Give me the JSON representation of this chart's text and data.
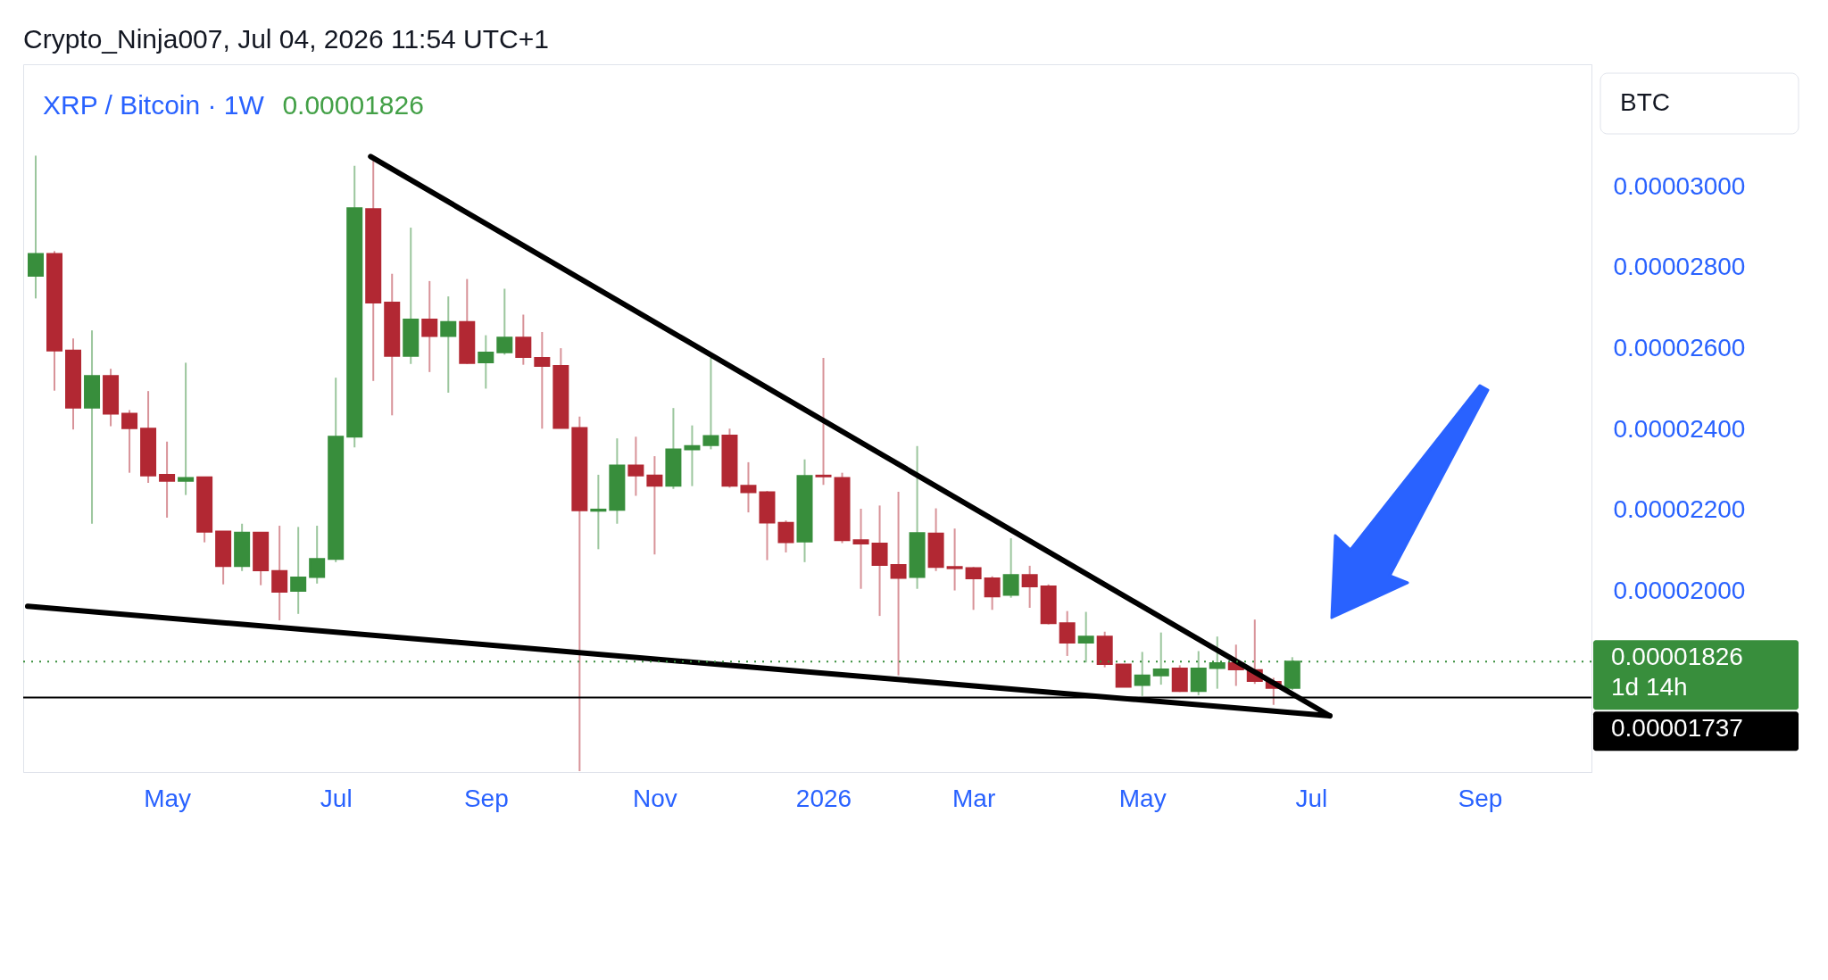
{
  "chart_data": {
    "type": "candlestick",
    "title": "Crypto_Ninja007, Jul 04, 2026 11:54 UTC+1",
    "subtitle": "XRP / Bitcoin · 1W",
    "ylabel": "BTC",
    "annotations": [
      "0.00001826"
    ],
    "x": [
      "2025-03-17",
      "2025-03-24",
      "2025-03-31",
      "2025-04-07",
      "2025-04-14",
      "2025-04-21",
      "2025-04-28",
      "2025-05-05",
      "2025-05-12",
      "2025-05-19",
      "2025-05-26",
      "2025-06-02",
      "2025-06-09",
      "2025-06-16",
      "2025-06-23",
      "2025-06-30",
      "2025-07-07",
      "2025-07-14",
      "2025-07-21",
      "2025-07-28",
      "2025-08-04",
      "2025-08-11",
      "2025-08-18",
      "2025-08-25",
      "2025-09-01",
      "2025-09-08",
      "2025-09-15",
      "2025-09-22",
      "2025-09-29",
      "2025-10-06",
      "2025-10-13",
      "2025-10-20",
      "2025-10-27",
      "2025-11-03",
      "2025-11-10",
      "2025-11-17",
      "2025-11-24",
      "2025-12-01",
      "2025-12-08",
      "2025-12-15",
      "2025-12-22",
      "2025-12-29",
      "2026-01-05",
      "2026-01-12",
      "2026-01-19",
      "2026-01-26",
      "2026-02-02",
      "2026-02-09",
      "2026-02-16",
      "2026-02-23",
      "2026-03-02",
      "2026-03-09",
      "2026-03-16",
      "2026-03-23",
      "2026-03-30",
      "2026-04-06",
      "2026-04-13",
      "2026-04-20",
      "2026-04-27",
      "2026-05-04",
      "2026-05-11",
      "2026-05-18",
      "2026-05-25",
      "2026-06-01",
      "2026-06-08",
      "2026-06-15",
      "2026-06-22",
      "2026-06-29"
    ],
    "ohlc": [
      [
        2.78e-05,
        3.077e-05,
        2.724e-05,
        2.834e-05
      ],
      [
        2.834e-05,
        2.841e-05,
        2.496e-05,
        2.595e-05
      ],
      [
        2.595e-05,
        2.625e-05,
        2.4e-05,
        2.454e-05
      ],
      [
        2.454e-05,
        2.645e-05,
        2.167e-05,
        2.532e-05
      ],
      [
        2.532e-05,
        2.55e-05,
        2.408e-05,
        2.439e-05
      ],
      [
        2.439e-05,
        2.448e-05,
        2.293e-05,
        2.403e-05
      ],
      [
        2.402e-05,
        2.495e-05,
        2.268e-05,
        2.286e-05
      ],
      [
        2.288e-05,
        2.37e-05,
        2.182e-05,
        2.273e-05
      ],
      [
        2.273e-05,
        2.565e-05,
        2.238e-05,
        2.28e-05
      ],
      [
        2.282e-05,
        2.282e-05,
        2.121e-05,
        2.147e-05
      ],
      [
        2.148e-05,
        2.148e-05,
        2.017e-05,
        2.062e-05
      ],
      [
        2.062e-05,
        2.167e-05,
        2.05e-05,
        2.145e-05
      ],
      [
        2.145e-05,
        2.145e-05,
        2.015e-05,
        2.052e-05
      ],
      [
        2.05e-05,
        2.162e-05,
        1.928e-05,
        1.999e-05
      ],
      [
        2.001e-05,
        2.159e-05,
        1.944e-05,
        2.034e-05
      ],
      [
        2.035e-05,
        2.162e-05,
        2.019e-05,
        2.08e-05
      ],
      [
        2.08e-05,
        2.528e-05,
        2.072e-05,
        2.382e-05
      ],
      [
        2.382e-05,
        3.052e-05,
        2.356e-05,
        2.947e-05
      ],
      [
        2.945e-05,
        3.064e-05,
        2.52e-05,
        2.714e-05
      ],
      [
        2.714e-05,
        2.785e-05,
        2.435e-05,
        2.582e-05
      ],
      [
        2.582e-05,
        2.899e-05,
        2.562e-05,
        2.672e-05
      ],
      [
        2.672e-05,
        2.767e-05,
        2.542e-05,
        2.631e-05
      ],
      [
        2.631e-05,
        2.729e-05,
        2.491e-05,
        2.666e-05
      ],
      [
        2.666e-05,
        2.772e-05,
        2.562e-05,
        2.564e-05
      ],
      [
        2.566e-05,
        2.633e-05,
        2.501e-05,
        2.59e-05
      ],
      [
        2.591e-05,
        2.748e-05,
        2.585e-05,
        2.627e-05
      ],
      [
        2.627e-05,
        2.684e-05,
        2.56e-05,
        2.579e-05
      ],
      [
        2.577e-05,
        2.641e-05,
        2.402e-05,
        2.557e-05
      ],
      [
        2.557e-05,
        2.601e-05,
        2.404e-05,
        2.404e-05
      ],
      [
        2.404e-05,
        2.432e-05,
        1.555e-05,
        2.2e-05
      ],
      [
        2.199e-05,
        2.288e-05,
        2.104e-05,
        2.202e-05
      ],
      [
        2.201e-05,
        2.378e-05,
        2.167e-05,
        2.311e-05
      ],
      [
        2.311e-05,
        2.382e-05,
        2.236e-05,
        2.286e-05
      ],
      [
        2.286e-05,
        2.334e-05,
        2.091e-05,
        2.261e-05
      ],
      [
        2.261e-05,
        2.453e-05,
        2.253e-05,
        2.351e-05
      ],
      [
        2.351e-05,
        2.41e-05,
        2.26e-05,
        2.359e-05
      ],
      [
        2.361e-05,
        2.577e-05,
        2.351e-05,
        2.384e-05
      ],
      [
        2.385e-05,
        2.402e-05,
        2.256e-05,
        2.261e-05
      ],
      [
        2.261e-05,
        2.319e-05,
        2.195e-05,
        2.245e-05
      ],
      [
        2.245e-05,
        2.248e-05,
        2.077e-05,
        2.17e-05
      ],
      [
        2.169e-05,
        2.175e-05,
        2.096e-05,
        2.121e-05
      ],
      [
        2.123e-05,
        2.326e-05,
        2.072e-05,
        2.285e-05
      ],
      [
        2.286e-05,
        2.577e-05,
        2.263e-05,
        2.284e-05
      ],
      [
        2.28e-05,
        2.293e-05,
        2.119e-05,
        2.126e-05
      ],
      [
        2.126e-05,
        2.204e-05,
        2.006e-05,
        2.118e-05
      ],
      [
        2.118e-05,
        2.212e-05,
        1.939e-05,
        2.065e-05
      ],
      [
        2.065e-05,
        2.246e-05,
        1.792e-05,
        2.033e-05
      ],
      [
        2.035e-05,
        2.359e-05,
        2.006e-05,
        2.144e-05
      ],
      [
        2.143e-05,
        2.205e-05,
        2.05e-05,
        2.06e-05
      ],
      [
        2.06e-05,
        2.155e-05,
        2.002e-05,
        2.057e-05
      ],
      [
        2.057e-05,
        2.06e-05,
        1.954e-05,
        2.032e-05
      ],
      [
        2.032e-05,
        2.037e-05,
        1.954e-05,
        1.987e-05
      ],
      [
        1.991e-05,
        2.131e-05,
        1.984e-05,
        2.04e-05
      ],
      [
        2.04e-05,
        2.063e-05,
        1.959e-05,
        2.012e-05
      ],
      [
        2.012e-05,
        2.017e-05,
        1.918e-05,
        1.921e-05
      ],
      [
        1.921e-05,
        1.951e-05,
        1.84e-05,
        1.873e-05
      ],
      [
        1.873e-05,
        1.949e-05,
        1.824e-05,
        1.888e-05
      ],
      [
        1.888e-05,
        1.9e-05,
        1.812e-05,
        1.82e-05
      ],
      [
        1.819e-05,
        1.819e-05,
        1.764e-05,
        1.764e-05
      ],
      [
        1.768e-05,
        1.85e-05,
        1.741e-05,
        1.792e-05
      ],
      [
        1.792e-05,
        1.898e-05,
        1.769e-05,
        1.807e-05
      ],
      [
        1.809e-05,
        1.817e-05,
        1.751e-05,
        1.753e-05
      ],
      [
        1.753e-05,
        1.852e-05,
        1.743e-05,
        1.809e-05
      ],
      [
        1.81e-05,
        1.888e-05,
        1.759e-05,
        1.822e-05
      ],
      [
        1.822e-05,
        1.868e-05,
        1.766e-05,
        1.807e-05
      ],
      [
        1.805e-05,
        1.93e-05,
        1.771e-05,
        1.778e-05
      ],
      [
        1.776e-05,
        1.786e-05,
        1.719e-05,
        1.761e-05
      ],
      [
        1.761e-05,
        1.837e-05,
        1.756e-05,
        1.826e-05
      ]
    ],
    "colors": [
      "#388e3c",
      "#b22833",
      "#b22833",
      "#388e3c",
      "#b22833",
      "#b22833",
      "#b22833",
      "#b22833",
      "#388e3c",
      "#b22833",
      "#b22833",
      "#388e3c",
      "#b22833",
      "#b22833",
      "#388e3c",
      "#388e3c",
      "#388e3c",
      "#388e3c",
      "#b22833",
      "#b22833",
      "#388e3c",
      "#b22833",
      "#388e3c",
      "#b22833",
      "#388e3c",
      "#388e3c",
      "#b22833",
      "#b22833",
      "#b22833",
      "#b22833",
      "#388e3c",
      "#388e3c",
      "#b22833",
      "#b22833",
      "#388e3c",
      "#388e3c",
      "#388e3c",
      "#b22833",
      "#b22833",
      "#b22833",
      "#b22833",
      "#388e3c",
      "#b22833",
      "#b22833",
      "#b22833",
      "#b22833",
      "#b22833",
      "#388e3c",
      "#b22833",
      "#b22833",
      "#b22833",
      "#b22833",
      "#388e3c",
      "#b22833",
      "#b22833",
      "#b22833",
      "#388e3c",
      "#b22833",
      "#b22833",
      "#388e3c",
      "#388e3c",
      "#b22833",
      "#388e3c",
      "#388e3c",
      "#b22833",
      "#b22833",
      "#b22833",
      "#388e3c"
    ],
    "series": [
      {
        "type": "line",
        "color": "#000000",
        "x": [
          "2025-07-20",
          "2026-07-13"
        ],
        "values": [
          3.075e-05,
          1.692e-05
        ]
      },
      {
        "type": "line",
        "color": "#000000",
        "x": [
          "2025-03-14",
          "2026-07-13"
        ],
        "values": [
          1.963e-05,
          1.692e-05
        ]
      }
    ],
    "ref_lines": [
      {
        "axis": "y",
        "value": 1.826e-05,
        "label": "0.00001826\n1d 14h",
        "color": "#388e3c",
        "line_style": "dotted"
      },
      {
        "axis": "y",
        "value": 1.737e-05,
        "label": "0.00001737",
        "color": "#000000",
        "line_style": "solid"
      }
    ],
    "xlim": [
      "2025-03-14",
      "2026-10-17"
    ],
    "xticks": [
      {
        "value": "2025-05-05",
        "label": "May"
      },
      {
        "value": "2025-07-07",
        "label": "Jul"
      },
      {
        "value": "2025-09-01",
        "label": "Sep"
      },
      {
        "value": "2025-11-03",
        "label": "Nov"
      },
      {
        "value": "2026-01-05",
        "label": "2026"
      },
      {
        "value": "2026-03-02",
        "label": "Mar"
      },
      {
        "value": "2026-05-04",
        "label": "May"
      },
      {
        "value": "2026-07-06",
        "label": "Jul"
      },
      {
        "value": "2026-09-07",
        "label": "Sep"
      }
    ],
    "ylim": [
      1.553e-05,
      3.303e-05
    ],
    "yticks": [
      {
        "value": 2e-05,
        "label": "0.00002000"
      },
      {
        "value": 2.2e-05,
        "label": "0.00002200"
      },
      {
        "value": 2.4e-05,
        "label": "0.00002400"
      },
      {
        "value": 2.6e-05,
        "label": "0.00002600"
      },
      {
        "value": 2.8e-05,
        "label": "0.00002800"
      },
      {
        "value": 3e-05,
        "label": "0.00003000"
      }
    ]
  }
}
